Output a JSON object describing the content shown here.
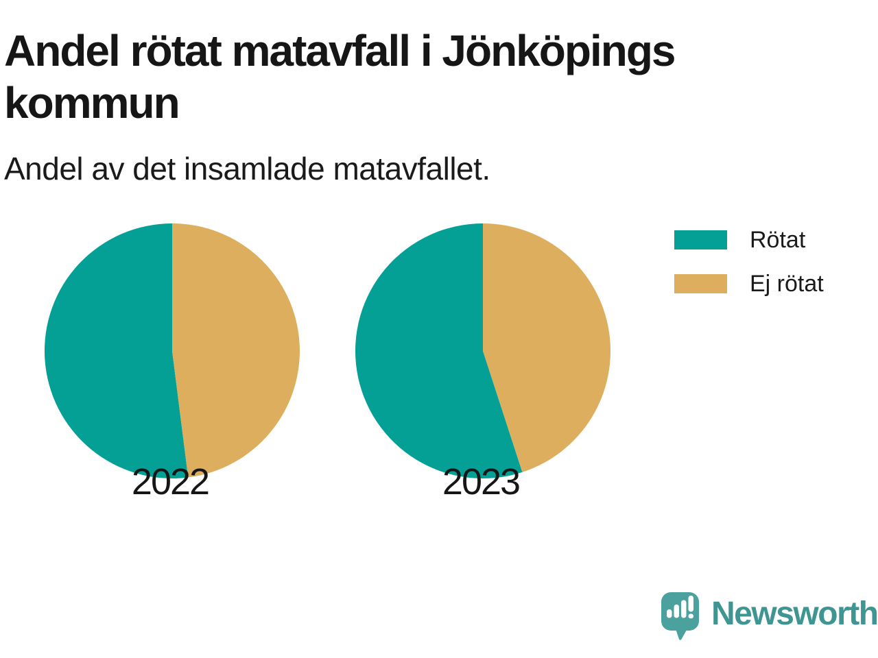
{
  "header": {
    "title": "Andel rötat matavfall i Jönköpings kommun",
    "subtitle": "Andel av det insamlade matavfallet."
  },
  "legend": {
    "position": "right",
    "items": [
      {
        "label": "Rötat",
        "color": "#04a096"
      },
      {
        "label": "Ej rötat",
        "color": "#dcae5e"
      }
    ]
  },
  "branding": {
    "logo_text": "Newsworthy",
    "logo_text_color": "#3f9591",
    "logo_pin_color": "#4ba19e",
    "logo_icon": "newsworthy-pin-icon"
  },
  "colors": {
    "rotat": "#04a096",
    "ej_rotat": "#dcae5e",
    "text": "#1a1a1a",
    "background": "#ffffff"
  },
  "chart_data": {
    "type": "pie",
    "title": "Andel rötat matavfall i Jönköpings kommun",
    "subtitle": "Andel av det insamlade matavfallet.",
    "unit": "share of collected food waste (%)",
    "legend_position": "right",
    "start_angle_deg": 90,
    "direction": "counterclockwise",
    "grid": false,
    "pies": [
      {
        "label": "2022",
        "slices": [
          {
            "name": "Rötat",
            "value": 52,
            "color": "#04a096"
          },
          {
            "name": "Ej rötat",
            "value": 48,
            "color": "#dcae5e"
          }
        ]
      },
      {
        "label": "2023",
        "slices": [
          {
            "name": "Rötat",
            "value": 55,
            "color": "#04a096"
          },
          {
            "name": "Ej rötat",
            "value": 45,
            "color": "#dcae5e"
          }
        ]
      }
    ]
  }
}
